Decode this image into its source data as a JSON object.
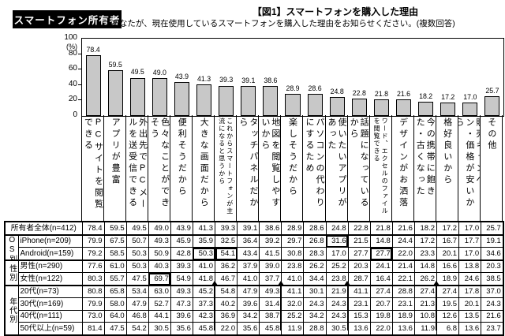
{
  "page": {
    "owner_badge": "スマートフォン所有者",
    "title": "【図1】スマートフォンを購入した理由",
    "subtitle": "Q.あなたが、現在使用しているスマートフォンを購入した理由をお知らせください。(複数回答)"
  },
  "chart_data": {
    "type": "bar",
    "unit_label": "(%)",
    "ylim": [
      0,
      100
    ],
    "yticks": [
      100,
      80,
      60,
      40,
      20,
      0
    ],
    "grid": false,
    "legend": "none",
    "bar_color": "#c8c8c8",
    "categories": [
      "PCサイトを閲覧できる",
      "アプリが豊富",
      "外出先でPCメールを送受信できる",
      "色々なことができそう",
      "便利そうだから",
      "大きな画面だから",
      "これからスマートフォンが主流になると思うから",
      "タッチパネルだから",
      "地図を閲覧しやすいから",
      "楽しそうだから",
      "パソコンの代わりにするため",
      "使いたいアプリがあった",
      "話題になっているから",
      "ワード、エクセルのファイルを閲覧できる",
      "デザインがお洒落",
      "今の携帯に飽きた・古くなった",
      "格好良いから",
      "販売キャンペーン・価格が安いから",
      "その他"
    ],
    "values": [
      78.4,
      59.5,
      49.5,
      49.0,
      43.9,
      41.3,
      39.3,
      39.1,
      38.6,
      28.9,
      28.6,
      24.8,
      22.8,
      21.8,
      21.6,
      18.2,
      17.2,
      17.0,
      25.7
    ]
  },
  "table": {
    "rows": [
      {
        "group": "",
        "label": "所有者全体(n=412)",
        "values": [
          78.4,
          59.5,
          49.5,
          49.0,
          43.9,
          41.3,
          39.3,
          39.1,
          38.6,
          28.9,
          28.6,
          24.8,
          22.8,
          21.8,
          21.6,
          18.2,
          17.2,
          17.0,
          25.7
        ]
      },
      {
        "group": "OS別",
        "label": "iPhone(n=209)",
        "values": [
          79.9,
          67.5,
          50.7,
          49.3,
          45.9,
          35.9,
          32.5,
          36.4,
          39.2,
          29.7,
          26.8,
          31.6,
          21.5,
          14.8,
          24.4,
          17.2,
          16.7,
          17.7,
          19.1
        ]
      },
      {
        "group": "OS別",
        "label": "Android(n=159)",
        "values": [
          79.2,
          58.5,
          50.3,
          50.9,
          42.8,
          50.3,
          54.1,
          43.4,
          41.5,
          30.8,
          28.3,
          17.0,
          27.7,
          27.7,
          22.0,
          23.3,
          20.1,
          17.0,
          34.6
        ]
      },
      {
        "group": "性別",
        "label": "男性(n=290)",
        "values": [
          77.6,
          61.0,
          50.3,
          40.3,
          39.3,
          41.0,
          36.2,
          37.9,
          39.0,
          23.8,
          26.2,
          25.2,
          20.3,
          24.1,
          21.4,
          14.8,
          16.6,
          13.8,
          20.3
        ]
      },
      {
        "group": "性別",
        "label": "女性(n=122)",
        "values": [
          80.3,
          55.7,
          47.5,
          69.7,
          54.9,
          41.8,
          46.7,
          41.0,
          37.7,
          41.0,
          34.4,
          23.8,
          28.7,
          16.4,
          22.1,
          26.2,
          18.9,
          24.6,
          38.5
        ]
      },
      {
        "group": "年代別",
        "label": "20代(n=73)",
        "values": [
          80.8,
          65.8,
          53.4,
          63.0,
          49.3,
          45.2,
          54.8,
          47.9,
          49.3,
          41.1,
          30.1,
          21.9,
          41.1,
          27.4,
          28.8,
          27.4,
          27.4,
          17.8,
          37.0
        ]
      },
      {
        "group": "年代別",
        "label": "30代(n=169)",
        "values": [
          79.9,
          58.0,
          47.9,
          52.7,
          47.3,
          37.3,
          40.2,
          39.6,
          31.4,
          32.0,
          24.3,
          24.3,
          23.1,
          20.7,
          23.1,
          21.3,
          19.5,
          20.1,
          24.3
        ]
      },
      {
        "group": "年代別",
        "label": "40代(n=111)",
        "values": [
          73.0,
          64.0,
          46.8,
          44.1,
          39.6,
          42.3,
          36.9,
          34.2,
          38.7,
          25.2,
          34.2,
          24.3,
          15.3,
          19.8,
          18.9,
          10.8,
          12.6,
          13.5,
          21.6
        ]
      },
      {
        "group": "年代別",
        "label": "50代以上(n=59)",
        "values": [
          81.4,
          47.5,
          54.2,
          30.5,
          35.6,
          45.8,
          22.0,
          35.6,
          45.8,
          11.9,
          28.8,
          30.5,
          13.6,
          22.0,
          13.6,
          11.9,
          6.8,
          13.6,
          23.7
        ]
      }
    ],
    "highlighted_cells": [
      {
        "row": 2,
        "col": 12
      },
      {
        "row": 3,
        "col": 6
      },
      {
        "row": 3,
        "col": 7
      },
      {
        "row": 3,
        "col": 14
      },
      {
        "row": 5,
        "col": 4
      }
    ],
    "arrow_annotations": {
      "target_row": 6,
      "cols": [
        7,
        10,
        13,
        17
      ]
    }
  }
}
